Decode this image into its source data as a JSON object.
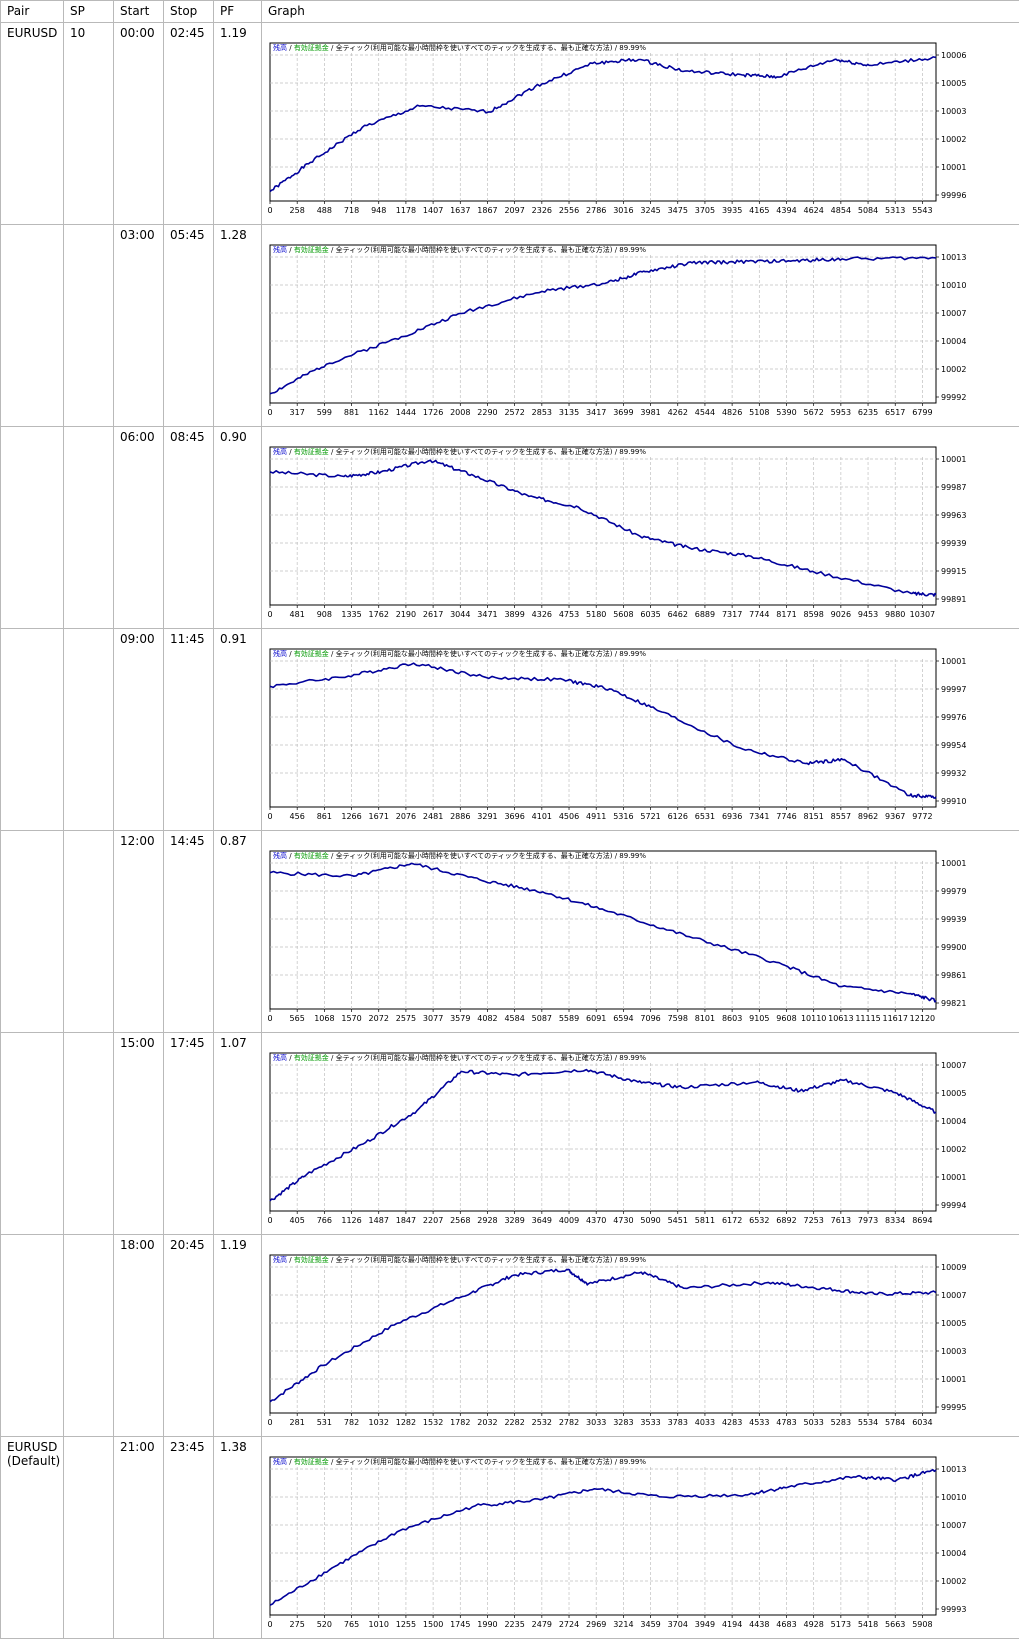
{
  "columns": [
    "Pair",
    "SP",
    "Start",
    "Stop",
    "PF",
    "Graph"
  ],
  "chart_header": {
    "part1": "残高",
    "sep1": " / ",
    "part2": "有効証拠金",
    "sep2": " / ",
    "part3": "全ティック(利用可能な最小時間枠を使いすべてのティックを生成する、最も正確な方法)",
    "sep3": " / ",
    "part4": "89.99%"
  },
  "colors": {
    "line": "#00009b",
    "grid": "#c0c0c0",
    "header_blue": "#0000cc",
    "header_green": "#009900"
  },
  "rows": [
    {
      "pair": "EURUSD",
      "sp": "10",
      "start": "00:00",
      "stop": "02:45",
      "pf": "1.19"
    },
    {
      "pair": "",
      "sp": "",
      "start": "03:00",
      "stop": "05:45",
      "pf": "1.28"
    },
    {
      "pair": "",
      "sp": "",
      "start": "06:00",
      "stop": "08:45",
      "pf": "0.90"
    },
    {
      "pair": "",
      "sp": "",
      "start": "09:00",
      "stop": "11:45",
      "pf": "0.91"
    },
    {
      "pair": "",
      "sp": "",
      "start": "12:00",
      "stop": "14:45",
      "pf": "0.87"
    },
    {
      "pair": "",
      "sp": "",
      "start": "15:00",
      "stop": "17:45",
      "pf": "1.07"
    },
    {
      "pair": "",
      "sp": "",
      "start": "18:00",
      "stop": "20:45",
      "pf": "1.19"
    },
    {
      "pair": "EURUSD\n(Default)",
      "sp": "",
      "start": "21:00",
      "stop": "23:45",
      "pf": "1.38"
    }
  ],
  "chart_data": [
    {
      "type": "line",
      "x_ticks": [
        "0",
        "258",
        "488",
        "718",
        "948",
        "1178",
        "1407",
        "1637",
        "1867",
        "2097",
        "2326",
        "2556",
        "2786",
        "3016",
        "3245",
        "3475",
        "3705",
        "3935",
        "4165",
        "4394",
        "4624",
        "4854",
        "5084",
        "5313",
        "5543"
      ],
      "y_ticks": [
        "1000683",
        "1000539",
        "1000395",
        "1000250",
        "1000106",
        "999962"
      ],
      "ylim": [
        999962,
        1000683
      ],
      "xmax": 5780,
      "series": [
        {
          "x": [
            0,
            350,
            800,
            1300,
            1900,
            2300,
            2800,
            3200,
            3600,
            4100,
            4400,
            4900,
            5200,
            5780
          ],
          "values": [
            999980,
            1000130,
            1000310,
            1000420,
            1000390,
            1000520,
            1000640,
            1000660,
            1000600,
            1000580,
            1000570,
            1000660,
            1000630,
            1000670
          ]
        }
      ]
    },
    {
      "type": "line",
      "x_ticks": [
        "0",
        "317",
        "599",
        "881",
        "1162",
        "1444",
        "1726",
        "2008",
        "2290",
        "2572",
        "2853",
        "3135",
        "3417",
        "3699",
        "3981",
        "4262",
        "4544",
        "4826",
        "5108",
        "5390",
        "5672",
        "5953",
        "6235",
        "6517",
        "6799"
      ],
      "y_ticks": [
        "1001349",
        "1001065",
        "1000781",
        "1000496",
        "1000212",
        "999928"
      ],
      "ylim": [
        999928,
        1001349
      ],
      "xmax": 7100,
      "series": [
        {
          "x": [
            0,
            600,
            1400,
            2100,
            2900,
            3600,
            4000,
            4500,
            5000,
            5600,
            6100,
            7100
          ],
          "values": [
            999960,
            1000260,
            1000540,
            1000800,
            1001000,
            1001090,
            1001200,
            1001290,
            1001300,
            1001310,
            1001330,
            1001340
          ]
        }
      ]
    },
    {
      "type": "line",
      "x_ticks": [
        "0",
        "481",
        "908",
        "1335",
        "1762",
        "2190",
        "2617",
        "3044",
        "3471",
        "3899",
        "4326",
        "4753",
        "5180",
        "5608",
        "6035",
        "6462",
        "6889",
        "7317",
        "7744",
        "8171",
        "8598",
        "9026",
        "9453",
        "9880",
        "10307"
      ],
      "y_ticks": [
        "1000110",
        "999871",
        "999631",
        "999392",
        "999152",
        "998913"
      ],
      "ylim": [
        998913,
        1000110
      ],
      "xmax": 10800,
      "series": [
        {
          "x": [
            0,
            1200,
            1800,
            2600,
            3300,
            4200,
            5000,
            6000,
            6800,
            7800,
            8800,
            10400,
            10800
          ],
          "values": [
            1000000,
            999960,
            1000000,
            1000100,
            999970,
            999790,
            999700,
            999450,
            999350,
            999280,
            999150,
            998960,
            998950
          ]
        }
      ]
    },
    {
      "type": "line",
      "x_ticks": [
        "0",
        "456",
        "861",
        "1266",
        "1671",
        "2076",
        "2481",
        "2886",
        "3291",
        "3696",
        "4101",
        "4506",
        "4911",
        "5316",
        "5721",
        "6126",
        "6531",
        "6936",
        "7341",
        "7746",
        "8151",
        "8557",
        "8962",
        "9367",
        "9772"
      ],
      "y_ticks": [
        "1000197",
        "999979",
        "999761",
        "999543",
        "999326",
        "999108"
      ],
      "ylim": [
        999108,
        1000197
      ],
      "xmax": 10200,
      "series": [
        {
          "x": [
            0,
            1200,
            2200,
            3300,
            4500,
            5200,
            6000,
            7200,
            8200,
            8800,
            9800,
            10200
          ],
          "values": [
            1000000,
            1000080,
            1000180,
            1000070,
            1000050,
            999980,
            999800,
            999520,
            999400,
            999430,
            999150,
            999140
          ]
        }
      ]
    },
    {
      "type": "line",
      "x_ticks": [
        "0",
        "565",
        "1068",
        "1570",
        "2072",
        "2575",
        "3077",
        "3579",
        "4082",
        "4584",
        "5087",
        "5589",
        "6091",
        "6594",
        "7096",
        "7598",
        "8101",
        "8603",
        "9105",
        "9608",
        "10110",
        "10613",
        "11115",
        "11617",
        "12120"
      ],
      "y_ticks": [
        "1000186",
        "999792",
        "999399",
        "999006",
        "998612",
        "998219"
      ],
      "ylim": [
        998219,
        1000186
      ],
      "xmax": 12700,
      "series": [
        {
          "x": [
            0,
            1600,
            2700,
            4000,
            5200,
            6500,
            8000,
            9600,
            10900,
            12200,
            12700
          ],
          "values": [
            1000050,
            1000000,
            1000180,
            999950,
            999780,
            999500,
            999150,
            998800,
            998450,
            998350,
            998250
          ]
        }
      ]
    },
    {
      "type": "line",
      "x_ticks": [
        "0",
        "405",
        "766",
        "1126",
        "1487",
        "1847",
        "2207",
        "2568",
        "2928",
        "3289",
        "3649",
        "4009",
        "4370",
        "4730",
        "5090",
        "5451",
        "5811",
        "6172",
        "6532",
        "6892",
        "7253",
        "7613",
        "7973",
        "8334",
        "8694"
      ],
      "y_ticks": [
        "1000736",
        "1000578",
        "1000420",
        "1000263",
        "1000105",
        "999947"
      ],
      "ylim": [
        999947,
        1000736
      ],
      "xmax": 9050,
      "series": [
        {
          "x": [
            0,
            500,
            1300,
            2000,
            2600,
            3300,
            4300,
            5000,
            5600,
            6600,
            7200,
            7800,
            8500,
            9050
          ],
          "values": [
            999970,
            1000120,
            1000300,
            1000480,
            1000700,
            1000680,
            1000710,
            1000640,
            1000610,
            1000640,
            1000590,
            1000650,
            1000580,
            1000470
          ]
        }
      ]
    },
    {
      "type": "line",
      "x_ticks": [
        "0",
        "281",
        "531",
        "782",
        "1032",
        "1282",
        "1532",
        "1782",
        "2032",
        "2282",
        "2532",
        "2782",
        "3033",
        "3283",
        "3533",
        "3783",
        "4033",
        "4283",
        "4533",
        "4783",
        "5033",
        "5283",
        "5534",
        "5784",
        "6034"
      ],
      "y_ticks": [
        "1000916",
        "1000723",
        "1000531",
        "1000339",
        "1000146",
        "999954"
      ],
      "ylim": [
        999954,
        1000916
      ],
      "xmax": 6280,
      "series": [
        {
          "x": [
            0,
            500,
            1200,
            1900,
            2300,
            2800,
            3000,
            3500,
            3900,
            4700,
            5200,
            5700,
            6280
          ],
          "values": [
            999990,
            1000240,
            1000530,
            1000740,
            1000860,
            1000900,
            1000800,
            1000880,
            1000770,
            1000810,
            1000770,
            1000730,
            1000740
          ]
        }
      ]
    },
    {
      "type": "line",
      "x_ticks": [
        "0",
        "275",
        "520",
        "765",
        "1010",
        "1255",
        "1500",
        "1745",
        "1990",
        "2235",
        "2479",
        "2724",
        "2969",
        "3214",
        "3459",
        "3704",
        "3949",
        "4194",
        "4438",
        "4683",
        "4928",
        "5173",
        "5418",
        "5663",
        "5908"
      ],
      "y_ticks": [
        "1001339",
        "1001058",
        "1000776",
        "1000495",
        "1000214",
        "999932"
      ],
      "ylim": [
        999932,
        1001339
      ],
      "xmax": 6160,
      "series": [
        {
          "x": [
            0,
            600,
            1200,
            1900,
            2500,
            3000,
            3600,
            4400,
            4800,
            5400,
            5800,
            6160
          ],
          "values": [
            999970,
            1000360,
            1000720,
            1000970,
            1001030,
            1001140,
            1001060,
            1001080,
            1001160,
            1001260,
            1001230,
            1001330
          ]
        }
      ]
    }
  ]
}
